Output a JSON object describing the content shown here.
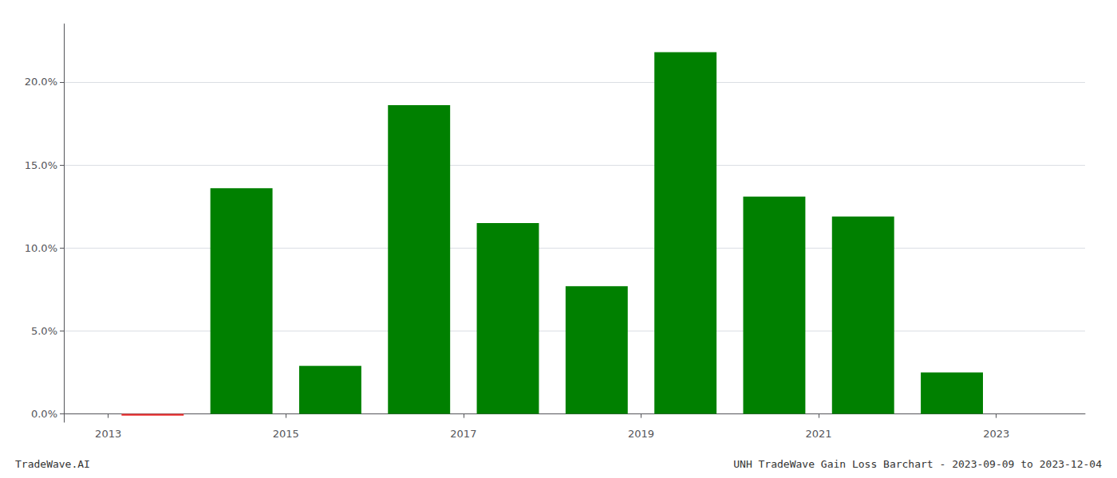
{
  "chart_data": {
    "type": "bar",
    "x": [
      2013.5,
      2014.5,
      2015.5,
      2016.5,
      2017.5,
      2018.5,
      2019.5,
      2020.5,
      2021.5,
      2022.5
    ],
    "values": [
      -0.001,
      0.136,
      0.029,
      0.186,
      0.115,
      0.077,
      0.218,
      0.131,
      0.119,
      0.025
    ],
    "colors": [
      "#ee3333",
      "#008000",
      "#008000",
      "#008000",
      "#008000",
      "#008000",
      "#008000",
      "#008000",
      "#008000",
      "#008000"
    ],
    "xlim": [
      2012.5,
      2024.0
    ],
    "xticks": [
      2013,
      2015,
      2017,
      2019,
      2021,
      2023
    ],
    "ylim": [
      -0.005,
      0.235
    ],
    "yticks": [
      {
        "value": 0.0,
        "label": "0.0%"
      },
      {
        "value": 0.05,
        "label": "5.0%"
      },
      {
        "value": 0.1,
        "label": "10.0%"
      },
      {
        "value": 0.15,
        "label": "15.0%"
      },
      {
        "value": 0.2,
        "label": "20.0%"
      }
    ],
    "grid": true,
    "annotations": [
      "TradeWave.AI",
      "UNH TradeWave Gain Loss Barchart - 2023-09-09 to 2023-12-04"
    ]
  }
}
